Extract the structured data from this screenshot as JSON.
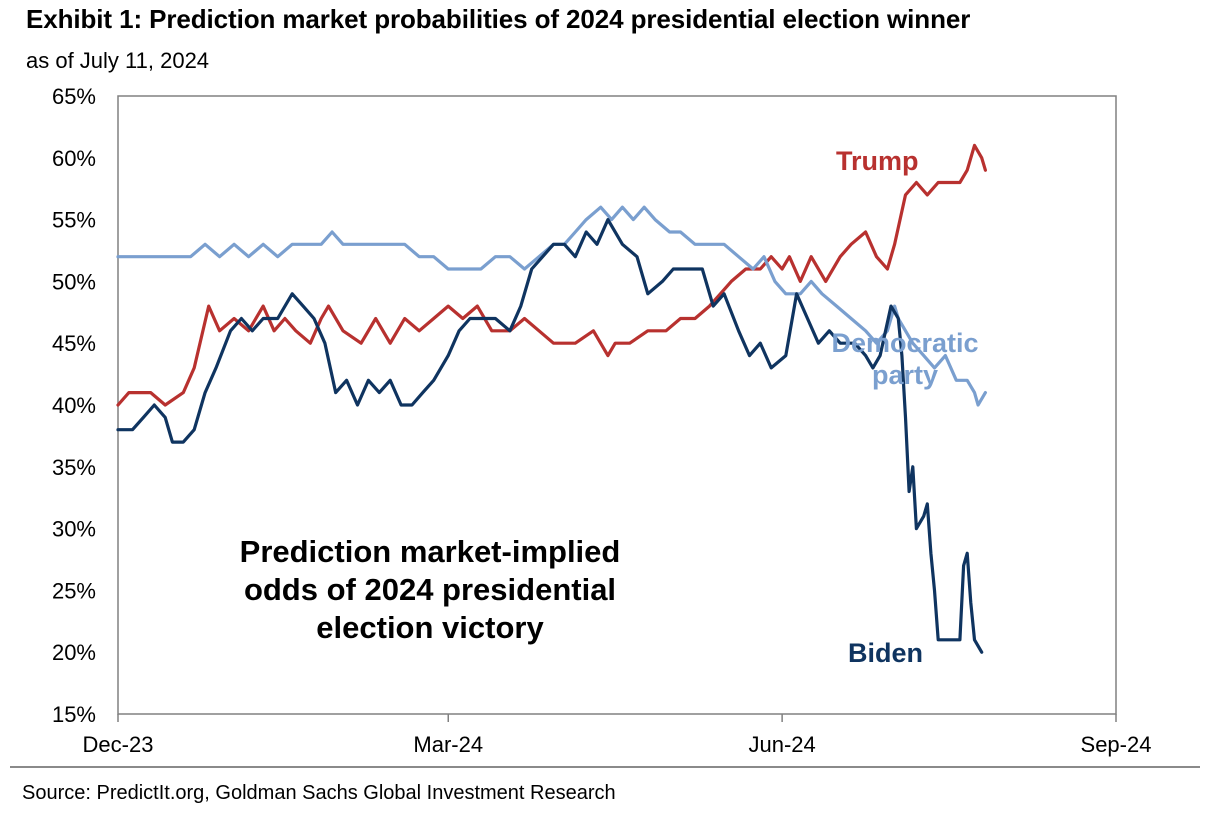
{
  "title": "Exhibit 1: Prediction market probabilities of 2024 presidential election winner",
  "subtitle": "as of July 11, 2024",
  "source": "Source: PredictIt.org, Goldman Sachs Global Investment Research",
  "colors": {
    "trump": "#b8312f",
    "democratic": "#7a9fcf",
    "biden": "#0f3460",
    "axis": "#808080"
  },
  "chart_data": {
    "type": "line",
    "title": "Exhibit 1: Prediction market probabilities of 2024 presidential election winner",
    "subtitle": "as of July 11, 2024",
    "xlabel": "",
    "ylabel": "",
    "x_ticks": [
      "Dec-23",
      "Mar-24",
      "Jun-24",
      "Sep-24"
    ],
    "y_ticks": [
      "15%",
      "20%",
      "25%",
      "30%",
      "35%",
      "40%",
      "45%",
      "50%",
      "55%",
      "60%",
      "65%"
    ],
    "ylim": [
      15,
      65
    ],
    "xlim": [
      "2023-12-01",
      "2024-09-01"
    ],
    "grid": false,
    "annotation": [
      "Prediction market-implied",
      "odds of 2024 presidential",
      "election victory"
    ],
    "series": [
      {
        "name": "Trump",
        "label_lines": [
          "Trump"
        ],
        "color": "#b8312f",
        "points": [
          [
            "2023-12-01",
            40
          ],
          [
            "2023-12-04",
            41
          ],
          [
            "2023-12-10",
            41
          ],
          [
            "2023-12-14",
            40
          ],
          [
            "2023-12-19",
            41
          ],
          [
            "2023-12-22",
            43
          ],
          [
            "2023-12-26",
            48
          ],
          [
            "2023-12-29",
            46
          ],
          [
            "2024-01-02",
            47
          ],
          [
            "2024-01-06",
            46
          ],
          [
            "2024-01-10",
            48
          ],
          [
            "2024-01-13",
            46
          ],
          [
            "2024-01-16",
            47
          ],
          [
            "2024-01-19",
            46
          ],
          [
            "2024-01-23",
            45
          ],
          [
            "2024-01-26",
            47
          ],
          [
            "2024-01-28",
            48
          ],
          [
            "2024-02-01",
            46
          ],
          [
            "2024-02-06",
            45
          ],
          [
            "2024-02-10",
            47
          ],
          [
            "2024-02-14",
            45
          ],
          [
            "2024-02-18",
            47
          ],
          [
            "2024-02-22",
            46
          ],
          [
            "2024-02-26",
            47
          ],
          [
            "2024-03-01",
            48
          ],
          [
            "2024-03-05",
            47
          ],
          [
            "2024-03-09",
            48
          ],
          [
            "2024-03-13",
            46
          ],
          [
            "2024-03-18",
            46
          ],
          [
            "2024-03-22",
            47
          ],
          [
            "2024-03-26",
            46
          ],
          [
            "2024-03-30",
            45
          ],
          [
            "2024-04-05",
            45
          ],
          [
            "2024-04-10",
            46
          ],
          [
            "2024-04-14",
            44
          ],
          [
            "2024-04-16",
            45
          ],
          [
            "2024-04-20",
            45
          ],
          [
            "2024-04-25",
            46
          ],
          [
            "2024-04-30",
            46
          ],
          [
            "2024-05-04",
            47
          ],
          [
            "2024-05-08",
            47
          ],
          [
            "2024-05-12",
            48
          ],
          [
            "2024-05-15",
            49
          ],
          [
            "2024-05-18",
            50
          ],
          [
            "2024-05-22",
            51
          ],
          [
            "2024-05-26",
            51
          ],
          [
            "2024-05-29",
            52
          ],
          [
            "2024-06-01",
            51
          ],
          [
            "2024-06-03",
            52
          ],
          [
            "2024-06-06",
            50
          ],
          [
            "2024-06-09",
            52
          ],
          [
            "2024-06-13",
            50
          ],
          [
            "2024-06-17",
            52
          ],
          [
            "2024-06-20",
            53
          ],
          [
            "2024-06-24",
            54
          ],
          [
            "2024-06-27",
            52
          ],
          [
            "2024-06-30",
            51
          ],
          [
            "2024-07-02",
            53
          ],
          [
            "2024-07-05",
            57
          ],
          [
            "2024-07-08",
            58
          ],
          [
            "2024-07-11",
            57
          ],
          [
            "2024-07-14",
            58
          ],
          [
            "2024-07-17",
            58
          ],
          [
            "2024-07-20",
            58
          ],
          [
            "2024-07-22",
            59
          ],
          [
            "2024-07-24",
            61
          ],
          [
            "2024-07-26",
            60
          ],
          [
            "2024-07-27",
            59
          ]
        ]
      },
      {
        "name": "Democratic party",
        "label_lines": [
          "Democratic",
          "party"
        ],
        "color": "#7a9fcf",
        "points": [
          [
            "2023-12-01",
            52
          ],
          [
            "2023-12-04",
            52
          ],
          [
            "2023-12-07",
            52
          ],
          [
            "2023-12-10",
            52
          ],
          [
            "2023-12-14",
            52
          ],
          [
            "2023-12-18",
            52
          ],
          [
            "2023-12-21",
            52
          ],
          [
            "2023-12-25",
            53
          ],
          [
            "2023-12-29",
            52
          ],
          [
            "2024-01-02",
            53
          ],
          [
            "2024-01-06",
            52
          ],
          [
            "2024-01-10",
            53
          ],
          [
            "2024-01-14",
            52
          ],
          [
            "2024-01-18",
            53
          ],
          [
            "2024-01-22",
            53
          ],
          [
            "2024-01-26",
            53
          ],
          [
            "2024-01-29",
            54
          ],
          [
            "2024-02-01",
            53
          ],
          [
            "2024-02-05",
            53
          ],
          [
            "2024-02-10",
            53
          ],
          [
            "2024-02-14",
            53
          ],
          [
            "2024-02-18",
            53
          ],
          [
            "2024-02-22",
            52
          ],
          [
            "2024-02-26",
            52
          ],
          [
            "2024-03-01",
            51
          ],
          [
            "2024-03-05",
            51
          ],
          [
            "2024-03-10",
            51
          ],
          [
            "2024-03-14",
            52
          ],
          [
            "2024-03-18",
            52
          ],
          [
            "2024-03-22",
            51
          ],
          [
            "2024-03-26",
            52
          ],
          [
            "2024-03-30",
            53
          ],
          [
            "2024-04-02",
            53
          ],
          [
            "2024-04-05",
            54
          ],
          [
            "2024-04-08",
            55
          ],
          [
            "2024-04-12",
            56
          ],
          [
            "2024-04-15",
            55
          ],
          [
            "2024-04-18",
            56
          ],
          [
            "2024-04-21",
            55
          ],
          [
            "2024-04-24",
            56
          ],
          [
            "2024-04-27",
            55
          ],
          [
            "2024-05-01",
            54
          ],
          [
            "2024-05-04",
            54
          ],
          [
            "2024-05-08",
            53
          ],
          [
            "2024-05-12",
            53
          ],
          [
            "2024-05-16",
            53
          ],
          [
            "2024-05-20",
            52
          ],
          [
            "2024-05-24",
            51
          ],
          [
            "2024-05-27",
            52
          ],
          [
            "2024-05-30",
            50
          ],
          [
            "2024-06-02",
            49
          ],
          [
            "2024-06-06",
            49
          ],
          [
            "2024-06-09",
            50
          ],
          [
            "2024-06-12",
            49
          ],
          [
            "2024-06-16",
            48
          ],
          [
            "2024-06-20",
            47
          ],
          [
            "2024-06-24",
            46
          ],
          [
            "2024-06-27",
            45
          ],
          [
            "2024-06-30",
            46
          ],
          [
            "2024-07-02",
            48
          ],
          [
            "2024-07-03",
            47
          ],
          [
            "2024-07-05",
            46
          ],
          [
            "2024-07-07",
            45
          ],
          [
            "2024-07-10",
            44
          ],
          [
            "2024-07-13",
            43
          ],
          [
            "2024-07-16",
            44
          ],
          [
            "2024-07-19",
            42
          ],
          [
            "2024-07-22",
            42
          ],
          [
            "2024-07-24",
            41
          ],
          [
            "2024-07-25",
            40
          ],
          [
            "2024-07-27",
            41
          ]
        ]
      },
      {
        "name": "Biden",
        "label_lines": [
          "Biden"
        ],
        "color": "#0f3460",
        "points": [
          [
            "2023-12-01",
            38
          ],
          [
            "2023-12-05",
            38
          ],
          [
            "2023-12-08",
            39
          ],
          [
            "2023-12-11",
            40
          ],
          [
            "2023-12-14",
            39
          ],
          [
            "2023-12-16",
            37
          ],
          [
            "2023-12-19",
            37
          ],
          [
            "2023-12-22",
            38
          ],
          [
            "2023-12-25",
            41
          ],
          [
            "2023-12-28",
            43
          ],
          [
            "2024-01-01",
            46
          ],
          [
            "2024-01-04",
            47
          ],
          [
            "2024-01-07",
            46
          ],
          [
            "2024-01-10",
            47
          ],
          [
            "2024-01-14",
            47
          ],
          [
            "2024-01-18",
            49
          ],
          [
            "2024-01-21",
            48
          ],
          [
            "2024-01-24",
            47
          ],
          [
            "2024-01-27",
            45
          ],
          [
            "2024-01-30",
            41
          ],
          [
            "2024-02-02",
            42
          ],
          [
            "2024-02-05",
            40
          ],
          [
            "2024-02-08",
            42
          ],
          [
            "2024-02-11",
            41
          ],
          [
            "2024-02-14",
            42
          ],
          [
            "2024-02-17",
            40
          ],
          [
            "2024-02-20",
            40
          ],
          [
            "2024-02-23",
            41
          ],
          [
            "2024-02-26",
            42
          ],
          [
            "2024-03-01",
            44
          ],
          [
            "2024-03-04",
            46
          ],
          [
            "2024-03-07",
            47
          ],
          [
            "2024-03-10",
            47
          ],
          [
            "2024-03-14",
            47
          ],
          [
            "2024-03-18",
            46
          ],
          [
            "2024-03-21",
            48
          ],
          [
            "2024-03-24",
            51
          ],
          [
            "2024-03-27",
            52
          ],
          [
            "2024-03-30",
            53
          ],
          [
            "2024-04-02",
            53
          ],
          [
            "2024-04-05",
            52
          ],
          [
            "2024-04-08",
            54
          ],
          [
            "2024-04-11",
            53
          ],
          [
            "2024-04-14",
            55
          ],
          [
            "2024-04-18",
            53
          ],
          [
            "2024-04-22",
            52
          ],
          [
            "2024-04-25",
            49
          ],
          [
            "2024-04-29",
            50
          ],
          [
            "2024-05-02",
            51
          ],
          [
            "2024-05-06",
            51
          ],
          [
            "2024-05-10",
            51
          ],
          [
            "2024-05-13",
            48
          ],
          [
            "2024-05-16",
            49
          ],
          [
            "2024-05-20",
            46
          ],
          [
            "2024-05-23",
            44
          ],
          [
            "2024-05-26",
            45
          ],
          [
            "2024-05-29",
            43
          ],
          [
            "2024-06-02",
            44
          ],
          [
            "2024-06-05",
            49
          ],
          [
            "2024-06-08",
            47
          ],
          [
            "2024-06-11",
            45
          ],
          [
            "2024-06-14",
            46
          ],
          [
            "2024-06-17",
            45
          ],
          [
            "2024-06-21",
            45
          ],
          [
            "2024-06-24",
            44
          ],
          [
            "2024-06-26",
            43
          ],
          [
            "2024-06-28",
            44
          ],
          [
            "2024-07-01",
            48
          ],
          [
            "2024-07-03",
            47
          ],
          [
            "2024-07-04",
            44
          ],
          [
            "2024-07-05",
            39
          ],
          [
            "2024-07-06",
            33
          ],
          [
            "2024-07-07",
            35
          ],
          [
            "2024-07-08",
            30
          ],
          [
            "2024-07-10",
            31
          ],
          [
            "2024-07-11",
            32
          ],
          [
            "2024-07-12",
            28
          ],
          [
            "2024-07-13",
            25
          ],
          [
            "2024-07-14",
            21
          ],
          [
            "2024-07-16",
            21
          ],
          [
            "2024-07-18",
            21
          ],
          [
            "2024-07-20",
            21
          ],
          [
            "2024-07-21",
            27
          ],
          [
            "2024-07-22",
            28
          ],
          [
            "2024-07-23",
            24
          ],
          [
            "2024-07-24",
            21
          ],
          [
            "2024-07-26",
            20
          ]
        ]
      }
    ]
  }
}
